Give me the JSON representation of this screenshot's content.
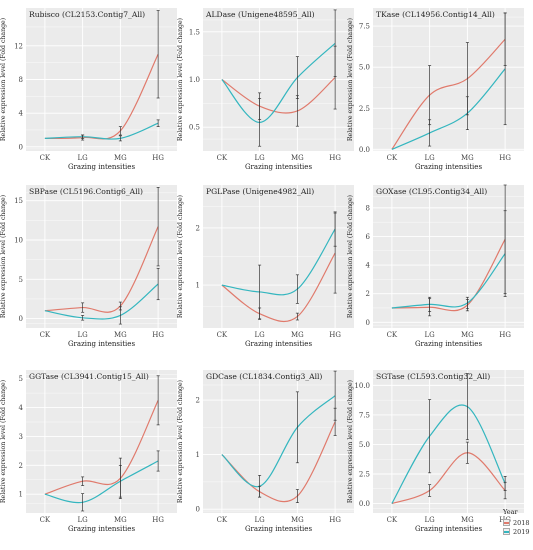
{
  "legend": {
    "title": "Year",
    "items": [
      "2018",
      "2019"
    ]
  },
  "colors": {
    "2018": "#e07a6c",
    "2019": "#34b6bf",
    "panel_bg": "#ebebeb",
    "grid": "#ffffff"
  },
  "chart_data": [
    {
      "type": "line",
      "title": "Rubisco (CL2153.Contig7_All)",
      "xlabel": "Grazing intensities",
      "ylabel": "Relative expression level (Fold change)",
      "categories": [
        "CK",
        "LG",
        "MG",
        "HG"
      ],
      "ylim": [
        -0.5,
        16.5
      ],
      "yticks": [
        0,
        4,
        8,
        12
      ],
      "series": [
        {
          "name": "2018",
          "values": [
            1.0,
            1.1,
            1.9,
            11.0
          ],
          "errors": [
            0,
            0.3,
            0.5,
            5.2
          ]
        },
        {
          "name": "2019",
          "values": [
            1.0,
            1.2,
            1.0,
            2.8
          ],
          "errors": [
            0,
            0.2,
            0.3,
            0.4
          ]
        }
      ]
    },
    {
      "type": "line",
      "title": "ALDase (Unigene48595_All)",
      "xlabel": "Grazing intensities",
      "ylabel": "Relative expression level (Fold change)",
      "categories": [
        "CK",
        "LG",
        "MG",
        "HG"
      ],
      "ylim": [
        0.25,
        1.75
      ],
      "yticks": [
        0.5,
        1.0,
        1.5
      ],
      "series": [
        {
          "name": "2018",
          "values": [
            1.0,
            0.72,
            0.67,
            1.02
          ],
          "errors": [
            0,
            0.14,
            0.16,
            0.33
          ]
        },
        {
          "name": "2019",
          "values": [
            1.0,
            0.55,
            1.02,
            1.38
          ],
          "errors": [
            0,
            0.25,
            0.22,
            0.35
          ]
        }
      ]
    },
    {
      "type": "line",
      "title": "TKase (CL14956.Contig14_All)",
      "xlabel": "Grazing intensities",
      "ylabel": "Relative expression level (Fold change)",
      "categories": [
        "CK",
        "LG",
        "MG",
        "HG"
      ],
      "ylim": [
        -0.1,
        8.6
      ],
      "yticks": [
        0,
        2.5,
        5.0,
        7.5
      ],
      "series": [
        {
          "name": "2018",
          "values": [
            0.0,
            3.3,
            4.3,
            6.7
          ],
          "errors": [
            0,
            1.8,
            2.2,
            1.6
          ]
        },
        {
          "name": "2019",
          "values": [
            0.0,
            1.0,
            2.2,
            4.9
          ],
          "errors": [
            0,
            0.8,
            1.0,
            3.4
          ]
        }
      ]
    },
    {
      "type": "line",
      "title": "SBPase (CL5196.Contig6_All)",
      "xlabel": "Grazing intensities",
      "ylabel": "Relative expression level (Fold change)",
      "categories": [
        "CK",
        "LG",
        "MG",
        "HG"
      ],
      "ylim": [
        -1.2,
        17
      ],
      "yticks": [
        0,
        5,
        10,
        15
      ],
      "series": [
        {
          "name": "2018",
          "values": [
            1.0,
            1.4,
            1.6,
            11.7
          ],
          "errors": [
            0,
            0.6,
            0.5,
            5.0
          ]
        },
        {
          "name": "2019",
          "values": [
            1.0,
            0.1,
            0.4,
            4.4
          ],
          "errors": [
            0,
            0.3,
            1.1,
            2.0
          ]
        }
      ]
    },
    {
      "type": "line",
      "title": "PGLPase (Unigene4982_All)",
      "xlabel": "Grazing intensities",
      "ylabel": "Relative expression level (Fold change)",
      "categories": [
        "CK",
        "LG",
        "MG",
        "HG"
      ],
      "ylim": [
        0.25,
        2.75
      ],
      "yticks": [
        1,
        2
      ],
      "series": [
        {
          "name": "2018",
          "values": [
            1.0,
            0.5,
            0.45,
            1.56
          ],
          "errors": [
            0,
            0.1,
            0.06,
            0.7
          ]
        },
        {
          "name": "2019",
          "values": [
            1.0,
            0.88,
            0.93,
            1.98
          ],
          "errors": [
            0,
            0.47,
            0.25,
            0.3
          ]
        }
      ]
    },
    {
      "type": "line",
      "title": "GOXase (CL95.Contig34_All)",
      "xlabel": "Grazing intensities",
      "ylabel": "Relative expression level (Fold change)",
      "categories": [
        "CK",
        "LG",
        "MG",
        "HG"
      ],
      "ylim": [
        -0.4,
        9.6
      ],
      "yticks": [
        0,
        2,
        4,
        6,
        8
      ],
      "series": [
        {
          "name": "2018",
          "values": [
            1.0,
            1.05,
            1.2,
            5.8
          ],
          "errors": [
            0,
            0.6,
            0.4,
            3.8
          ]
        },
        {
          "name": "2019",
          "values": [
            1.0,
            1.25,
            1.35,
            4.8
          ],
          "errors": [
            0,
            0.5,
            0.4,
            3.0
          ]
        }
      ]
    },
    {
      "type": "line",
      "title": "GGTase (CL3941.Contig15_All)",
      "xlabel": "Grazing intensities",
      "ylabel": "Relative expression level (Fold change)",
      "categories": [
        "CK",
        "LG",
        "MG",
        "HG"
      ],
      "ylim": [
        0.35,
        5.3
      ],
      "yticks": [
        1,
        2,
        3,
        4,
        5
      ],
      "series": [
        {
          "name": "2018",
          "values": [
            1.0,
            1.45,
            1.55,
            4.25
          ],
          "errors": [
            0,
            0.15,
            0.7,
            0.85
          ]
        },
        {
          "name": "2019",
          "values": [
            1.0,
            0.72,
            1.45,
            2.15
          ],
          "errors": [
            0,
            0.3,
            0.55,
            0.35
          ]
        }
      ]
    },
    {
      "type": "line",
      "title": "GDCase (CL1834.Contig3_All)",
      "xlabel": "Grazing intensities",
      "ylabel": "Relative expression level (Fold change)",
      "categories": [
        "CK",
        "LG",
        "MG",
        "HG"
      ],
      "ylim": [
        -0.07,
        2.55
      ],
      "yticks": [
        0,
        1,
        2
      ],
      "series": [
        {
          "name": "2018",
          "values": [
            1.0,
            0.32,
            0.24,
            1.6
          ],
          "errors": [
            0,
            0.1,
            0.12,
            0.25
          ]
        },
        {
          "name": "2019",
          "values": [
            1.0,
            0.42,
            1.5,
            2.08
          ],
          "errors": [
            0,
            0.2,
            0.65,
            0.45
          ]
        }
      ]
    },
    {
      "type": "line",
      "title": "SGTase (CL593.Contig32_All)",
      "xlabel": "Grazing intensities",
      "ylabel": "Relative expression level (Fold change)",
      "categories": [
        "CK",
        "LG",
        "MG",
        "HG"
      ],
      "ylim": [
        -0.8,
        11.3
      ],
      "yticks": [
        0,
        2.5,
        5.0,
        7.5,
        10.0
      ],
      "series": [
        {
          "name": "2018",
          "values": [
            0.0,
            1.1,
            4.3,
            1.1
          ],
          "errors": [
            0,
            0.5,
            0.9,
            0.7
          ]
        },
        {
          "name": "2019",
          "values": [
            0.0,
            5.7,
            8.2,
            1.7
          ],
          "errors": [
            0,
            3.1,
            2.8,
            0.6
          ]
        }
      ]
    }
  ]
}
